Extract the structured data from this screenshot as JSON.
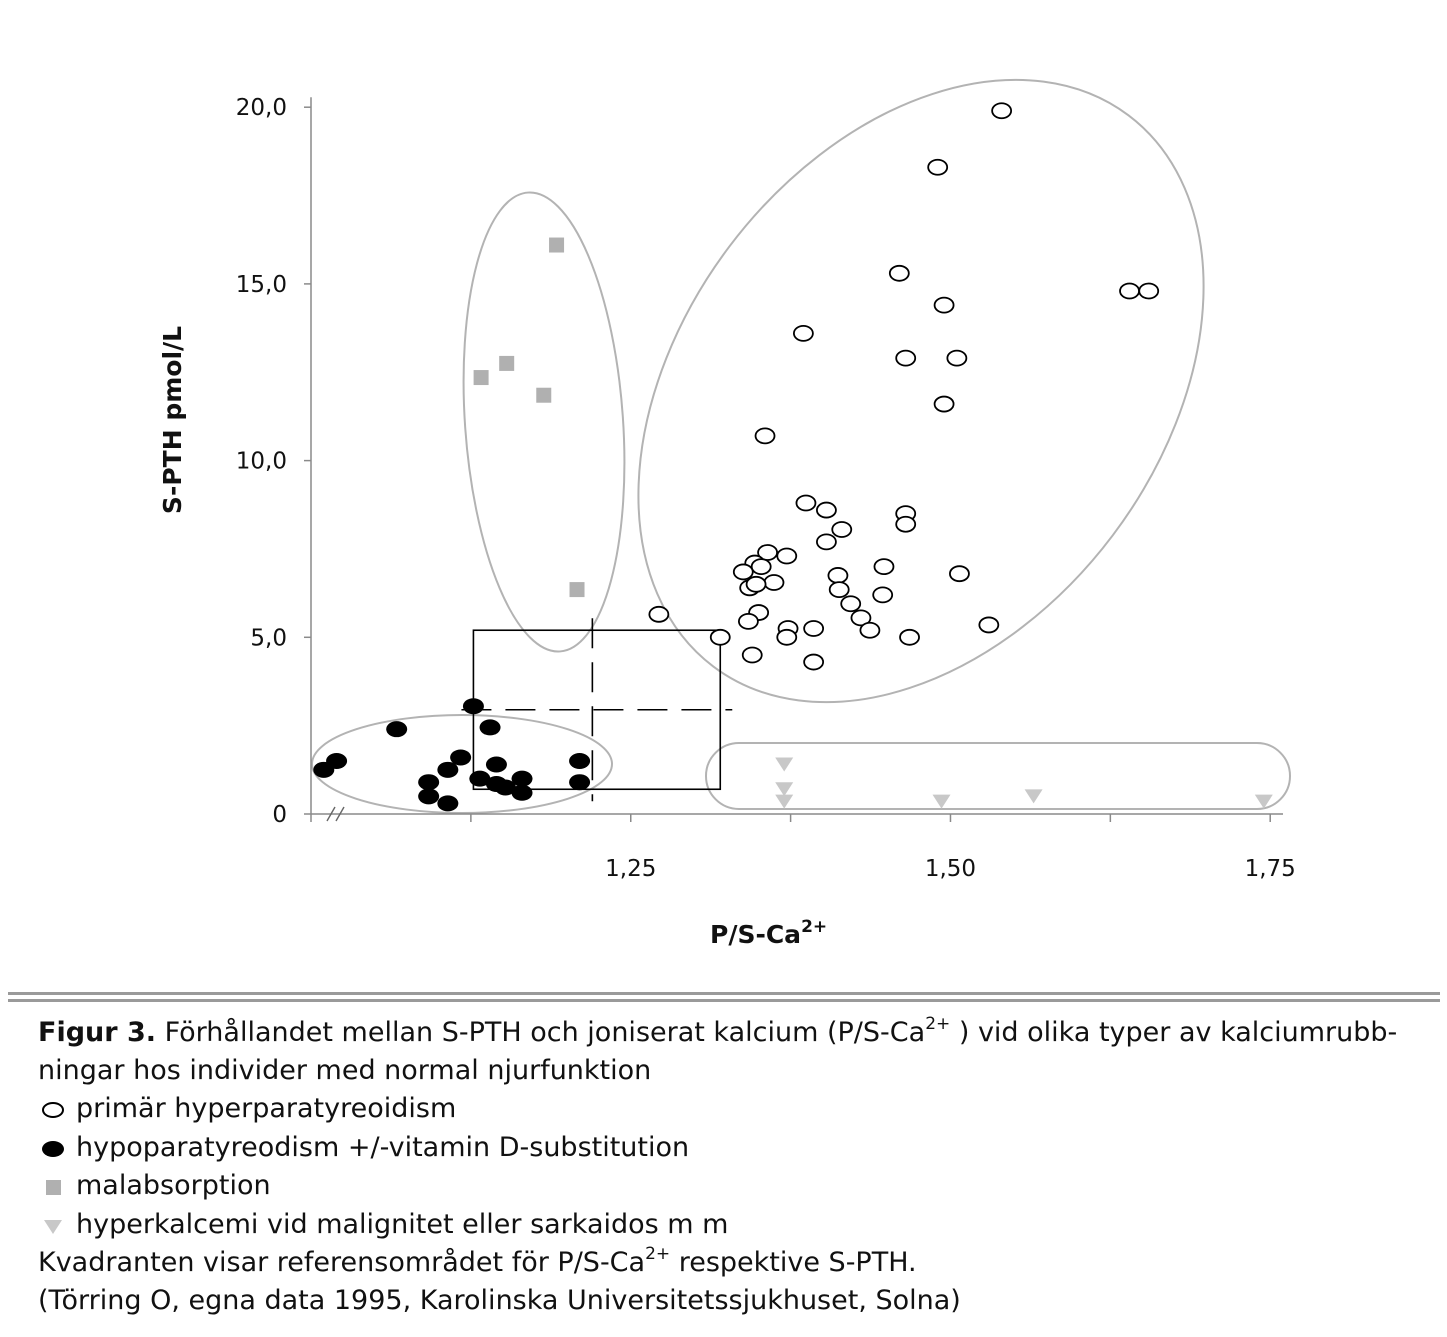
{
  "chart_data": {
    "type": "scatter",
    "ylabel": "S-PTH pmol/L",
    "xlabel": "P/S-Ca",
    "xlabel_sup": "2+",
    "xticks": [
      {
        "value": 1.25,
        "label": "1,25"
      },
      {
        "value": 1.5,
        "label": "1,50"
      },
      {
        "value": 1.75,
        "label": "1,75"
      }
    ],
    "yticks": [
      {
        "value": 0,
        "label": "0"
      },
      {
        "value": 5,
        "label": "5,0"
      },
      {
        "value": 10,
        "label": "10,0"
      },
      {
        "value": 15,
        "label": "15,0"
      },
      {
        "value": 20,
        "label": "20,0"
      }
    ],
    "xlim": [
      1.0,
      1.76
    ],
    "ylim": [
      0,
      20.6
    ],
    "x_axis_break": true,
    "grid": false,
    "reference_box": {
      "x": [
        1.127,
        1.32
      ],
      "y": [
        0.7,
        5.2
      ],
      "median_x": 1.22,
      "median_y": 2.95
    },
    "series": [
      {
        "name": "primär hyperparatyreoidism",
        "marker": "open-circle",
        "color": "#000000",
        "points": [
          [
            1.54,
            19.9
          ],
          [
            1.49,
            18.3
          ],
          [
            1.46,
            15.3
          ],
          [
            1.495,
            14.4
          ],
          [
            1.64,
            14.8
          ],
          [
            1.655,
            14.8
          ],
          [
            1.385,
            13.6
          ],
          [
            1.465,
            12.9
          ],
          [
            1.505,
            12.9
          ],
          [
            1.495,
            11.6
          ],
          [
            1.355,
            10.7
          ],
          [
            1.387,
            8.8
          ],
          [
            1.403,
            8.6
          ],
          [
            1.465,
            8.5
          ],
          [
            1.465,
            8.2
          ],
          [
            1.415,
            8.05
          ],
          [
            1.403,
            7.7
          ],
          [
            1.357,
            7.4
          ],
          [
            1.372,
            7.3
          ],
          [
            1.347,
            7.1
          ],
          [
            1.352,
            7.0
          ],
          [
            1.338,
            6.85
          ],
          [
            1.448,
            7.0
          ],
          [
            1.412,
            6.75
          ],
          [
            1.507,
            6.8
          ],
          [
            1.362,
            6.55
          ],
          [
            1.343,
            6.4
          ],
          [
            1.348,
            6.5
          ],
          [
            1.413,
            6.35
          ],
          [
            1.422,
            5.95
          ],
          [
            1.447,
            6.2
          ],
          [
            1.35,
            5.7
          ],
          [
            1.43,
            5.55
          ],
          [
            1.342,
            5.45
          ],
          [
            1.373,
            5.25
          ],
          [
            1.393,
            5.25
          ],
          [
            1.437,
            5.2
          ],
          [
            1.372,
            5.0
          ],
          [
            1.32,
            5.0
          ],
          [
            1.468,
            5.0
          ],
          [
            1.53,
            5.35
          ],
          [
            1.272,
            5.65
          ],
          [
            1.345,
            4.5
          ],
          [
            1.393,
            4.3
          ]
        ]
      },
      {
        "name": "hypoparatyreodism +/-vitamin D-substitution",
        "marker": "filled-circle",
        "color": "#000000",
        "points": [
          [
            1.01,
            1.25
          ],
          [
            1.02,
            1.5
          ],
          [
            1.067,
            2.4
          ],
          [
            1.127,
            3.05
          ],
          [
            1.14,
            2.45
          ],
          [
            1.117,
            1.6
          ],
          [
            1.107,
            1.25
          ],
          [
            1.092,
            0.9
          ],
          [
            1.092,
            0.5
          ],
          [
            1.107,
            0.3
          ],
          [
            1.145,
            1.4
          ],
          [
            1.132,
            1.0
          ],
          [
            1.145,
            0.85
          ],
          [
            1.152,
            0.75
          ],
          [
            1.165,
            0.6
          ],
          [
            1.165,
            1.0
          ],
          [
            1.21,
            1.5
          ],
          [
            1.21,
            0.9
          ]
        ]
      },
      {
        "name": "malabsorption",
        "marker": "square",
        "color": "#b0b0b0",
        "points": [
          [
            1.192,
            16.1
          ],
          [
            1.133,
            12.35
          ],
          [
            1.153,
            12.75
          ],
          [
            1.182,
            11.85
          ],
          [
            1.208,
            6.35
          ]
        ]
      },
      {
        "name": "hyperkalcemi vid malignitet eller sarkaidos m m",
        "marker": "triangle-down",
        "color": "#c8c8c8",
        "points": [
          [
            1.37,
            1.4
          ],
          [
            1.37,
            0.7
          ],
          [
            1.37,
            0.35
          ],
          [
            1.493,
            0.35
          ],
          [
            1.565,
            0.5
          ],
          [
            1.745,
            0.35
          ]
        ]
      }
    ]
  },
  "caption": {
    "figure_label": "Figur 3.",
    "title_before_sup": " Förhållandet mellan S-PTH och joniserat kalcium (P/S-Ca",
    "title_sup": "2+",
    "title_after_sup": " ) vid olika typer av kalciumrubb-",
    "title_line2": "ningar hos individer med normal njurfunktion",
    "legend": [
      {
        "marker": "open-circle",
        "label": "primär hyperparatyreoidism"
      },
      {
        "marker": "filled-circle",
        "label": "hypoparatyreodism +/-vitamin D-substitution"
      },
      {
        "marker": "square",
        "label": "malabsorption"
      },
      {
        "marker": "triangle-down",
        "label": "hyperkalcemi vid malignitet eller sarkaidos m m"
      }
    ],
    "note_before_sup": "Kvadranten visar referensområdet för P/S-Ca",
    "note_sup": "2+",
    "note_after_sup": " respektive S-PTH.",
    "source": "(Törring O, egna data 1995, Karolinska Universitetssjukhuset, Solna)"
  }
}
